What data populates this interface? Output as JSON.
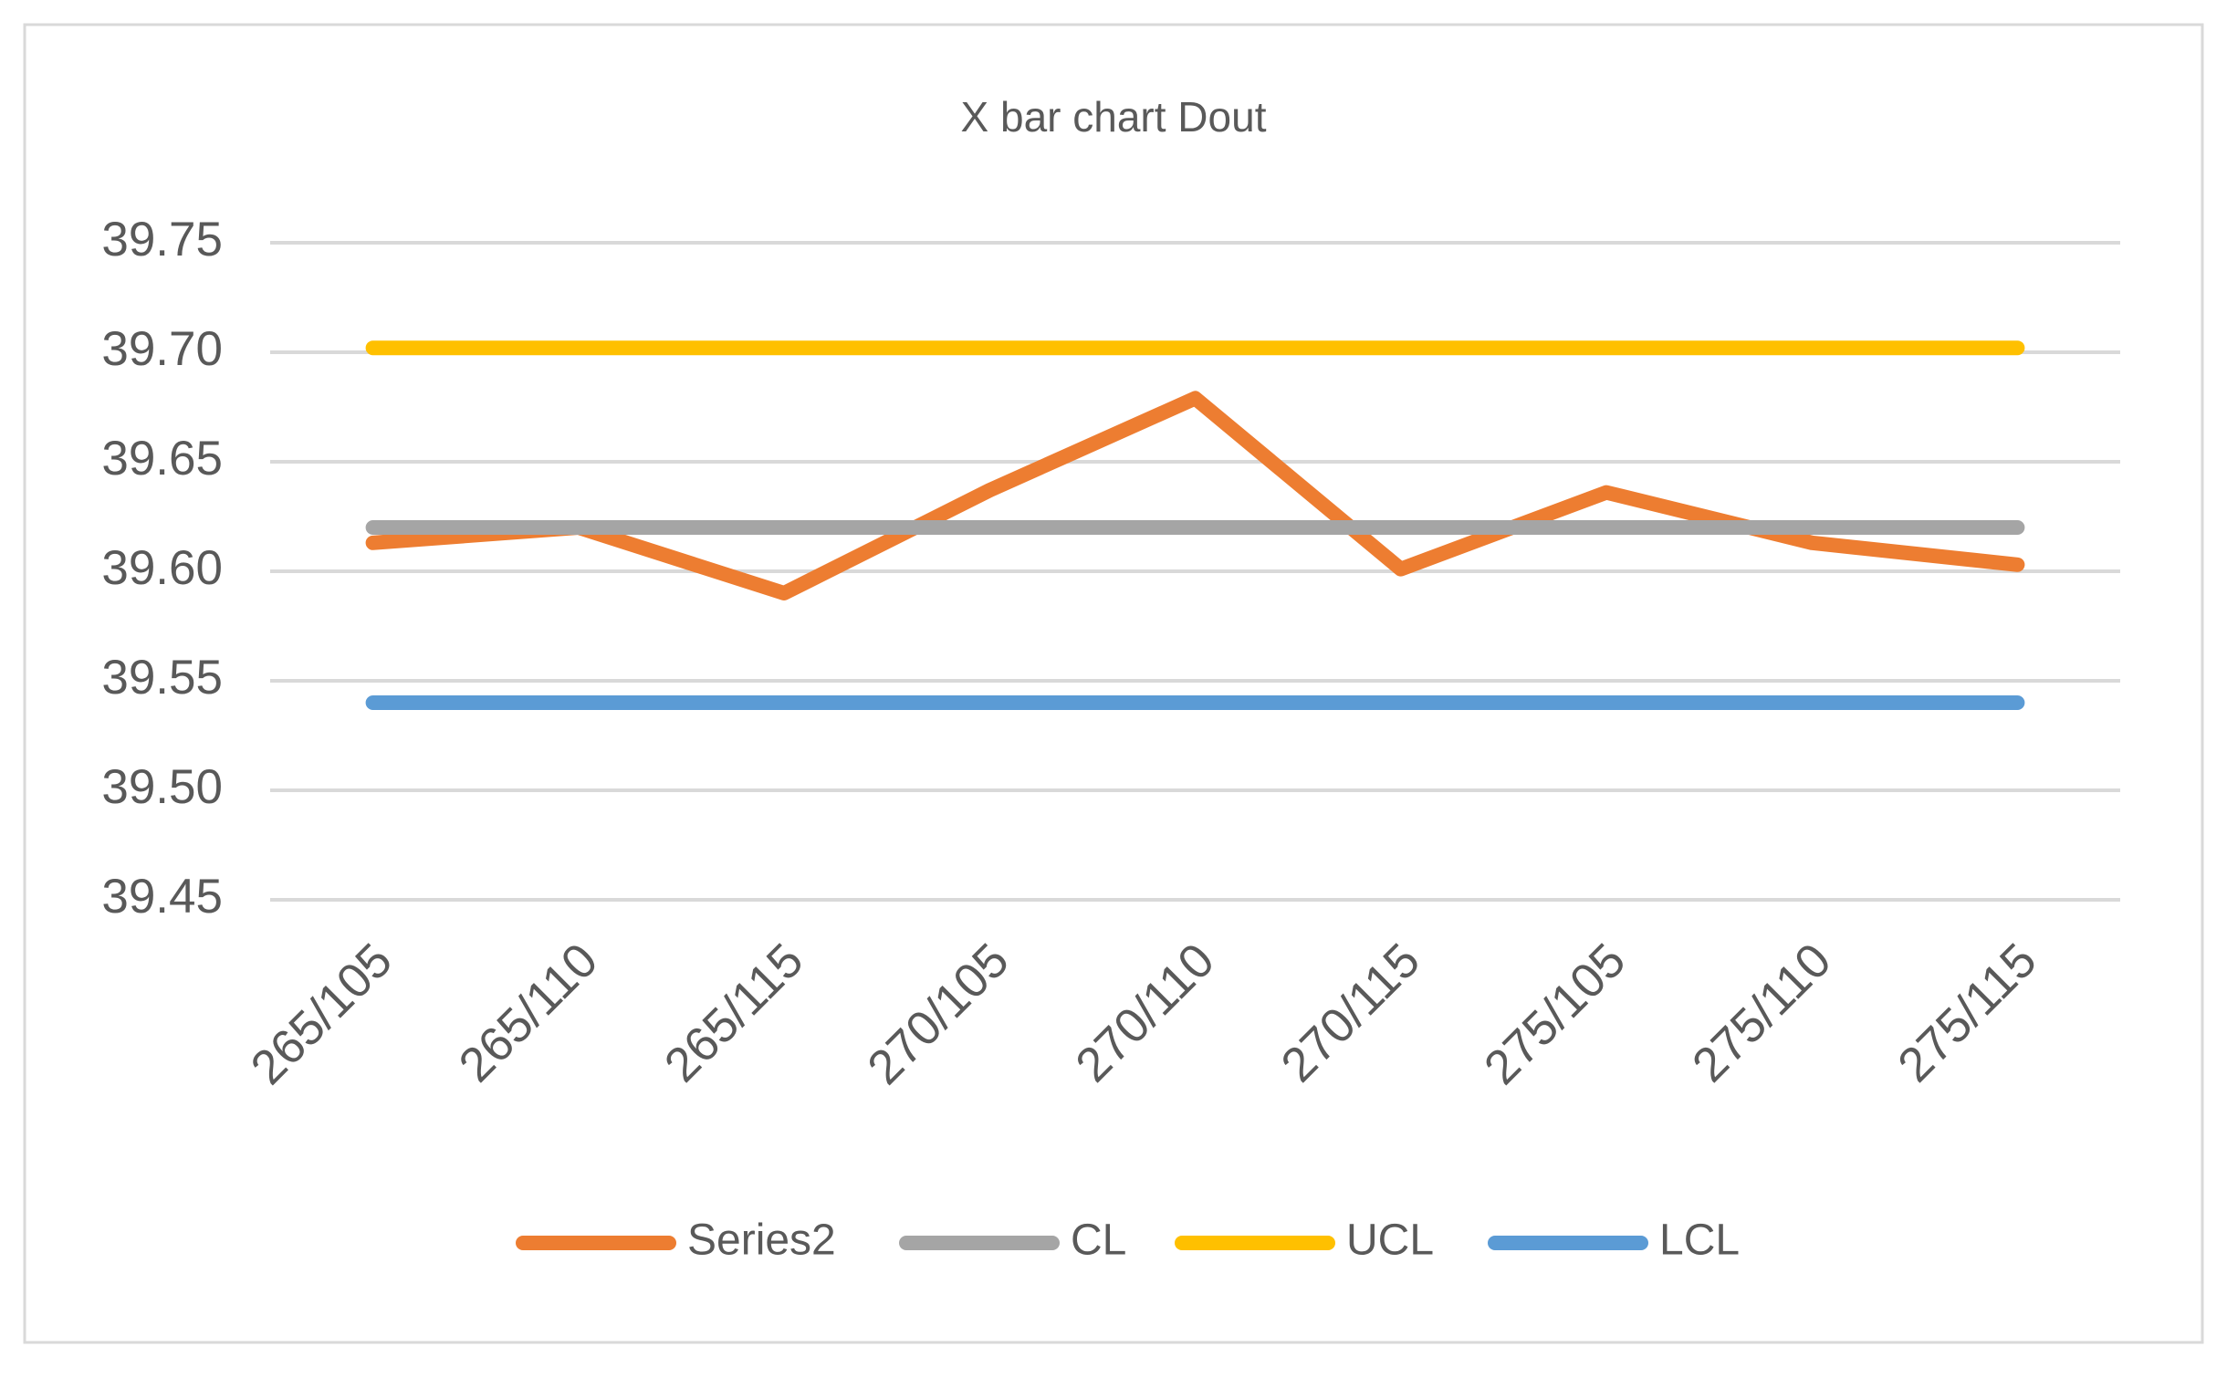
{
  "chart_data": {
    "type": "line",
    "title": "X bar chart Dout",
    "categories": [
      "265/105",
      "265/110",
      "265/115",
      "270/105",
      "270/110",
      "270/115",
      "275/105",
      "275/110",
      "275/115"
    ],
    "series": [
      {
        "name": "Series2",
        "color": "#ed7d31",
        "values": [
          39.613,
          39.62,
          39.59,
          39.637,
          39.679,
          39.601,
          39.636,
          39.613,
          39.603
        ]
      },
      {
        "name": "CL",
        "color": "#a5a5a5",
        "values": [
          39.62,
          39.62,
          39.62,
          39.62,
          39.62,
          39.62,
          39.62,
          39.62,
          39.62
        ]
      },
      {
        "name": "UCL",
        "color": "#ffc000",
        "values": [
          39.702,
          39.702,
          39.702,
          39.702,
          39.702,
          39.702,
          39.702,
          39.702,
          39.702
        ]
      },
      {
        "name": "LCL",
        "color": "#5b9bd5",
        "values": [
          39.54,
          39.54,
          39.54,
          39.54,
          39.54,
          39.54,
          39.54,
          39.54,
          39.54
        ]
      }
    ],
    "ylim": [
      39.45,
      39.75
    ],
    "yticks": [
      39.45,
      {
        "value": 39.5,
        "label": "39.50"
      },
      39.55,
      {
        "value": 39.6,
        "label": "39.60"
      },
      39.65,
      {
        "value": 39.7,
        "label": "39.70"
      },
      39.75
    ],
    "grid": true,
    "legend": "bottom"
  }
}
